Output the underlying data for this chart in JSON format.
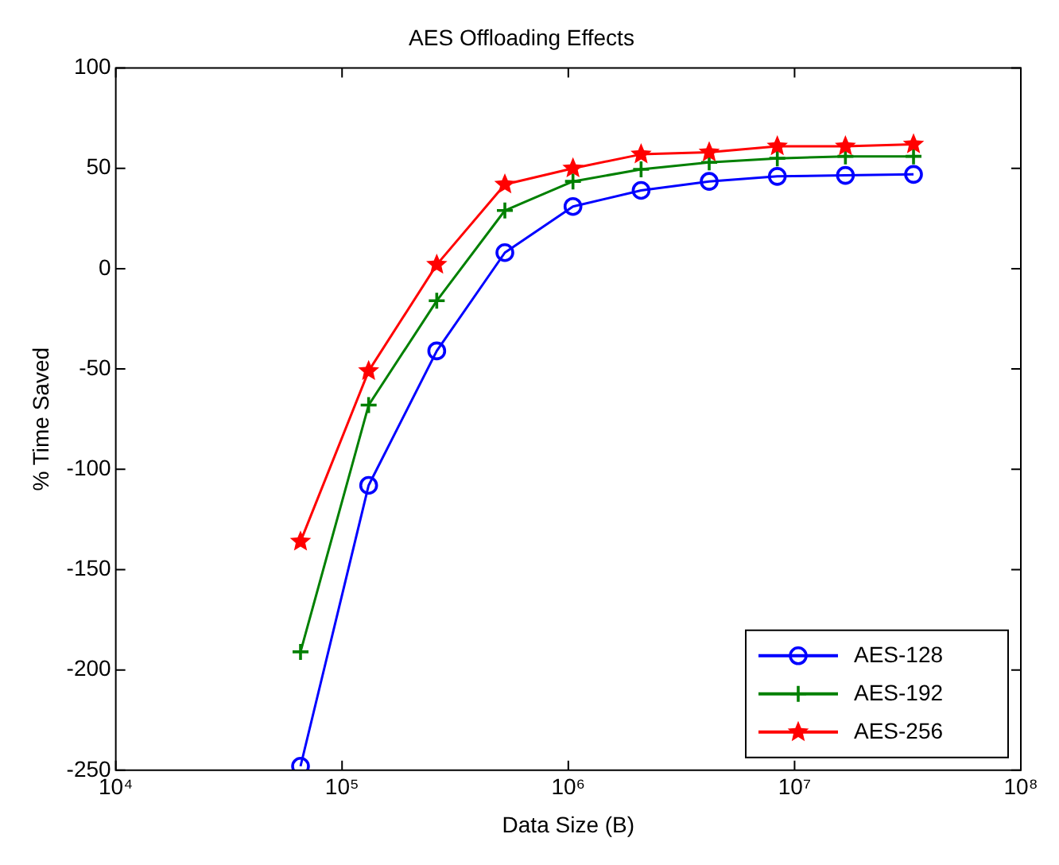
{
  "chart_data": {
    "type": "line",
    "title": "AES Offloading Effects",
    "xlabel": "Data Size (B)",
    "ylabel": "% Time Saved",
    "x": [
      65536,
      131072,
      262144,
      524288,
      1048576,
      2097152,
      4194304,
      8388608,
      16777216,
      33554432
    ],
    "series": [
      {
        "name": "AES-128",
        "color": "#0000ff",
        "marker": "circle",
        "values": [
          -248,
          -108,
          -41,
          8,
          31,
          39,
          43.5,
          46,
          46.5,
          47
        ]
      },
      {
        "name": "AES-192",
        "color": "#008000",
        "marker": "cross",
        "values": [
          -191,
          -68,
          -16,
          29,
          43.5,
          49.5,
          53,
          55,
          56,
          56
        ]
      },
      {
        "name": "AES-256",
        "color": "#ff0000",
        "marker": "star",
        "values": [
          -136,
          -51,
          2,
          42,
          50,
          57,
          58,
          61,
          61,
          62
        ]
      }
    ],
    "log": "x",
    "xlim": [
      10000,
      100000000
    ],
    "xticks": [
      {
        "value": 10000,
        "label": "10⁴"
      },
      {
        "value": 100000,
        "label": "10⁵"
      },
      {
        "value": 1000000,
        "label": "10⁶"
      },
      {
        "value": 10000000,
        "label": "10⁷"
      },
      {
        "value": 100000000,
        "label": "10⁸"
      }
    ],
    "ylim": [
      -250,
      100
    ],
    "yticks": [
      -250,
      -200,
      -150,
      -100,
      -50,
      0,
      50,
      100
    ],
    "grid": false,
    "legend": "bottom right",
    "line_style": "solid"
  }
}
